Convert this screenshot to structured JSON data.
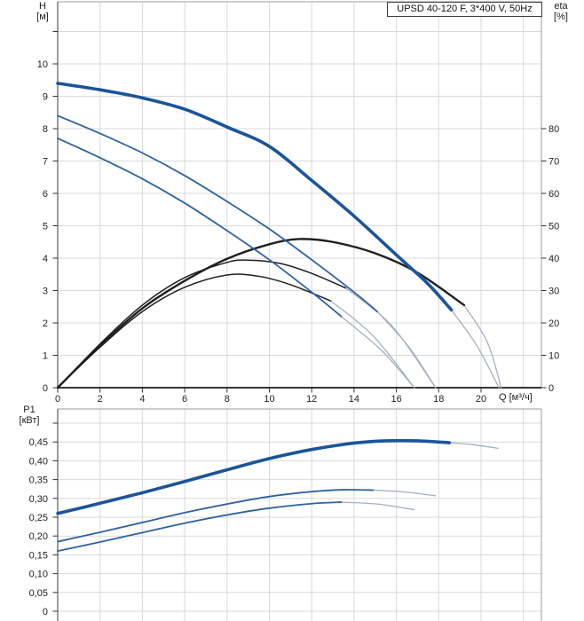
{
  "colors": {
    "curve_main": "#1b5499",
    "curve_thin": "#2d62a3",
    "curve_eta": "#1f1f1f",
    "extension": "#a6b0bd",
    "grid": "#d9d9d9",
    "border": "#9b9b9b",
    "axis_left": "#5a5a5a",
    "axis_bottom": "#1a1a1a",
    "tick": "#333333",
    "text": "#222222"
  },
  "chart_data": [
    {
      "type": "line",
      "name": "head-efficiency-chart",
      "title": "UPSD 40-120 F, 3*400 V, 50Hz",
      "xlabel": "Q [м³/ч]",
      "ylabel_left": "H",
      "ylabel_left_unit": "[м]",
      "ylabel_right": "eta",
      "ylabel_right_unit": "[%]",
      "xlim": [
        0,
        22.85
      ],
      "ylim_left": [
        0,
        11.92
      ],
      "ylim_right": [
        0,
        119.2
      ],
      "grid": true,
      "legend_position": "none",
      "x_ticks": [
        {
          "v": 0,
          "label": "0"
        },
        {
          "v": 2,
          "label": "2"
        },
        {
          "v": 4,
          "label": "4"
        },
        {
          "v": 6,
          "label": "6"
        },
        {
          "v": 8,
          "label": "8"
        },
        {
          "v": 10,
          "label": "10"
        },
        {
          "v": 12,
          "label": "12"
        },
        {
          "v": 14,
          "label": "14"
        },
        {
          "v": 16,
          "label": "16"
        },
        {
          "v": 18,
          "label": "18"
        },
        {
          "v": 20,
          "label": "20"
        }
      ],
      "x_gridlines": [
        2,
        4,
        6,
        8,
        10,
        12,
        14,
        16,
        18,
        20,
        22
      ],
      "y_ticks_left": [
        {
          "v": 0,
          "label": "0"
        },
        {
          "v": 1,
          "label": "1"
        },
        {
          "v": 2,
          "label": "2"
        },
        {
          "v": 3,
          "label": "3"
        },
        {
          "v": 4,
          "label": "4"
        },
        {
          "v": 5,
          "label": "5"
        },
        {
          "v": 6,
          "label": "6"
        },
        {
          "v": 7,
          "label": "7"
        },
        {
          "v": 8,
          "label": "8"
        },
        {
          "v": 9,
          "label": "9"
        },
        {
          "v": 10,
          "label": "10"
        },
        {
          "v": 11,
          "label": ""
        }
      ],
      "y_gridlines_left": [
        1,
        2,
        3,
        4,
        5,
        6,
        7,
        8,
        9,
        10,
        11
      ],
      "y_ticks_right": [
        {
          "v": 0,
          "label": "0"
        },
        {
          "v": 10,
          "label": "10"
        },
        {
          "v": 20,
          "label": "20"
        },
        {
          "v": 30,
          "label": "30"
        },
        {
          "v": 40,
          "label": "40"
        },
        {
          "v": 50,
          "label": "50"
        },
        {
          "v": 60,
          "label": "60"
        },
        {
          "v": 70,
          "label": "70"
        },
        {
          "v": 80,
          "label": "80"
        }
      ],
      "series": [
        {
          "name": "head-speed3",
          "style": "head",
          "axis": "left",
          "points": [
            [
              0,
              9.4
            ],
            [
              2,
              9.2
            ],
            [
              4,
              8.95
            ],
            [
              6,
              8.6
            ],
            [
              8,
              8.05
            ],
            [
              10,
              7.45
            ],
            [
              12,
              6.4
            ],
            [
              14,
              5.3
            ],
            [
              16,
              4.1
            ],
            [
              17.5,
              3.2
            ],
            [
              18.6,
              2.4
            ]
          ]
        },
        {
          "name": "head-speed3-extension",
          "style": "ext",
          "axis": "left",
          "points": [
            [
              18.6,
              2.4
            ],
            [
              19.8,
              1.3
            ],
            [
              20.85,
              0
            ]
          ]
        },
        {
          "name": "head-speed2",
          "style": "head_thin",
          "axis": "left",
          "points": [
            [
              0,
              8.4
            ],
            [
              2,
              7.85
            ],
            [
              4,
              7.25
            ],
            [
              6,
              6.55
            ],
            [
              8,
              5.75
            ],
            [
              10,
              4.9
            ],
            [
              12,
              3.95
            ],
            [
              14,
              2.95
            ],
            [
              15.1,
              2.35
            ]
          ]
        },
        {
          "name": "head-speed2-extension",
          "style": "ext",
          "axis": "left",
          "points": [
            [
              15.1,
              2.35
            ],
            [
              16.6,
              1.25
            ],
            [
              17.85,
              0
            ]
          ]
        },
        {
          "name": "head-speed1",
          "style": "head_thin",
          "axis": "left",
          "points": [
            [
              0,
              7.7
            ],
            [
              2,
              7.1
            ],
            [
              4,
              6.45
            ],
            [
              6,
              5.7
            ],
            [
              8,
              4.85
            ],
            [
              10,
              3.95
            ],
            [
              12,
              2.95
            ],
            [
              13.4,
              2.2
            ]
          ]
        },
        {
          "name": "head-speed1-extension",
          "style": "ext",
          "axis": "left",
          "points": [
            [
              13.4,
              2.2
            ],
            [
              15.3,
              1.15
            ],
            [
              16.85,
              0
            ]
          ]
        },
        {
          "name": "eta-speed3",
          "style": "eta",
          "axis": "right",
          "points": [
            [
              0,
              0
            ],
            [
              2,
              13
            ],
            [
              4,
              24.5
            ],
            [
              6,
              33
            ],
            [
              8,
              39.8
            ],
            [
              10,
              44.3
            ],
            [
              11.4,
              45.9
            ],
            [
              13,
              45
            ],
            [
              15,
              41.5
            ],
            [
              17,
              35.5
            ],
            [
              19.2,
              25.5
            ]
          ]
        },
        {
          "name": "eta-speed3-extension",
          "style": "ext",
          "axis": "right",
          "points": [
            [
              19.2,
              25.5
            ],
            [
              20.3,
              14
            ],
            [
              20.95,
              0
            ]
          ]
        },
        {
          "name": "eta-speed2",
          "style": "eta_thin",
          "axis": "right",
          "points": [
            [
              0,
              0
            ],
            [
              2,
              13.5
            ],
            [
              4,
              25.5
            ],
            [
              6,
              34
            ],
            [
              8,
              38.7
            ],
            [
              9,
              39.4
            ],
            [
              10.5,
              38.4
            ],
            [
              12,
              35.3
            ],
            [
              13.6,
              30.8
            ]
          ]
        },
        {
          "name": "eta-speed2-extension",
          "style": "ext",
          "axis": "right",
          "points": [
            [
              13.6,
              30.8
            ],
            [
              15.8,
              19
            ],
            [
              17.85,
              0
            ]
          ]
        },
        {
          "name": "eta-speed1",
          "style": "eta_thin",
          "axis": "right",
          "points": [
            [
              0,
              0
            ],
            [
              2,
              12.5
            ],
            [
              4,
              23.5
            ],
            [
              6,
              31
            ],
            [
              8,
              34.8
            ],
            [
              9.5,
              34.4
            ],
            [
              11,
              31.8
            ],
            [
              12.9,
              26.8
            ]
          ]
        },
        {
          "name": "eta-speed1-extension",
          "style": "ext",
          "axis": "right",
          "points": [
            [
              12.9,
              26.8
            ],
            [
              14.9,
              16
            ],
            [
              16.85,
              0
            ]
          ]
        }
      ]
    },
    {
      "type": "line",
      "name": "power-chart",
      "ylabel_left": "P1",
      "ylabel_left_unit": "[кВт]",
      "xlim": [
        0,
        22.85
      ],
      "ylim": [
        0,
        0.54
      ],
      "grid": true,
      "x_gridlines": [
        2,
        4,
        6,
        8,
        10,
        12,
        14,
        16,
        18,
        20,
        22
      ],
      "y_ticks": [
        {
          "v": 0,
          "label": "0"
        },
        {
          "v": 0.05,
          "label": "0,05"
        },
        {
          "v": 0.1,
          "label": "0,10"
        },
        {
          "v": 0.15,
          "label": "0,15"
        },
        {
          "v": 0.2,
          "label": "0,20"
        },
        {
          "v": 0.25,
          "label": "0,25"
        },
        {
          "v": 0.3,
          "label": "0,30"
        },
        {
          "v": 0.35,
          "label": "0,35"
        },
        {
          "v": 0.4,
          "label": "0,40"
        },
        {
          "v": 0.45,
          "label": "0,45"
        },
        {
          "v": 0.5,
          "label": ""
        }
      ],
      "y_gridlines": [
        0,
        0.05,
        0.1,
        0.15,
        0.2,
        0.25,
        0.3,
        0.35,
        0.4,
        0.45,
        0.5
      ],
      "series": [
        {
          "name": "power-speed3",
          "style": "head",
          "axis": "left",
          "points": [
            [
              0,
              0.26
            ],
            [
              2,
              0.287
            ],
            [
              4,
              0.315
            ],
            [
              6,
              0.345
            ],
            [
              8,
              0.376
            ],
            [
              10,
              0.406
            ],
            [
              12,
              0.43
            ],
            [
              14,
              0.447
            ],
            [
              15.5,
              0.453
            ],
            [
              17,
              0.453
            ],
            [
              18.5,
              0.448
            ]
          ]
        },
        {
          "name": "power-speed3-extension",
          "style": "ext",
          "axis": "left",
          "points": [
            [
              18.5,
              0.448
            ],
            [
              19.6,
              0.443
            ],
            [
              20.8,
              0.433
            ]
          ]
        },
        {
          "name": "power-speed2",
          "style": "head_thin",
          "axis": "left",
          "points": [
            [
              0,
              0.185
            ],
            [
              2,
              0.21
            ],
            [
              4,
              0.236
            ],
            [
              6,
              0.262
            ],
            [
              8,
              0.285
            ],
            [
              10,
              0.305
            ],
            [
              12,
              0.318
            ],
            [
              13.5,
              0.323
            ],
            [
              14.9,
              0.322
            ]
          ]
        },
        {
          "name": "power-speed2-extension",
          "style": "ext",
          "axis": "left",
          "points": [
            [
              14.9,
              0.322
            ],
            [
              16.4,
              0.317
            ],
            [
              17.85,
              0.307
            ]
          ]
        },
        {
          "name": "power-speed1",
          "style": "head_thin",
          "axis": "left",
          "points": [
            [
              0,
              0.16
            ],
            [
              2,
              0.184
            ],
            [
              4,
              0.209
            ],
            [
              6,
              0.234
            ],
            [
              8,
              0.256
            ],
            [
              10,
              0.274
            ],
            [
              12,
              0.286
            ],
            [
              13.4,
              0.29
            ]
          ]
        },
        {
          "name": "power-speed1-extension",
          "style": "ext",
          "axis": "left",
          "points": [
            [
              13.4,
              0.29
            ],
            [
              15.1,
              0.285
            ],
            [
              16.85,
              0.27
            ]
          ]
        }
      ]
    }
  ]
}
